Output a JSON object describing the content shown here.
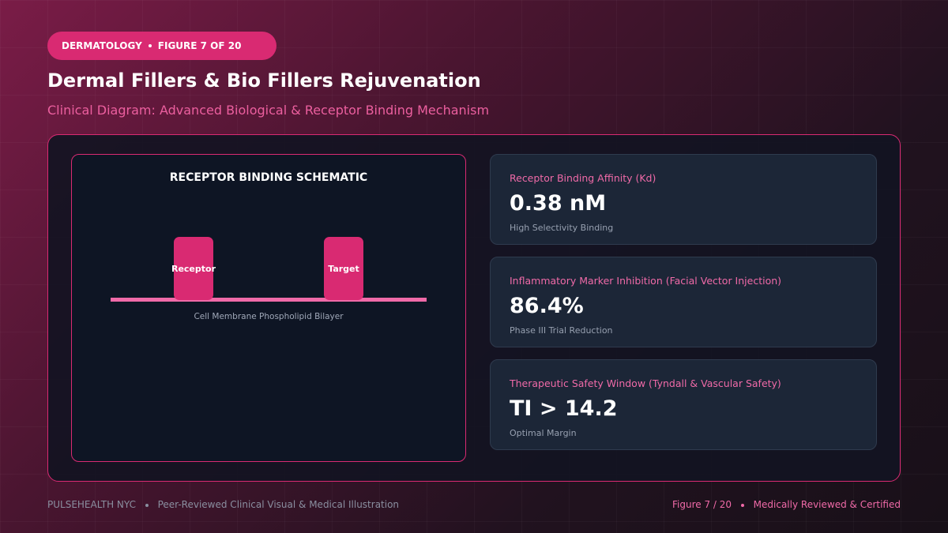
{
  "badge": {
    "category": "DERMATOLOGY",
    "figure": "FIGURE 7 OF 20"
  },
  "header": {
    "title": "Dermal Fillers & Bio Fillers Rejuvenation",
    "subtitle": "Clinical Diagram: Advanced Biological & Receptor Binding Mechanism"
  },
  "schematic": {
    "title": "RECEPTOR BINDING SCHEMATIC",
    "nodes": [
      "Receptor",
      "Target"
    ],
    "membrane": "Cell Membrane Phospholipid Bilayer"
  },
  "stats": [
    {
      "label": "Receptor Binding Affinity (Kd)",
      "value": "0.38 nM",
      "note": "High Selectivity Binding"
    },
    {
      "label": "Inflammatory Marker Inhibition (Facial Vector Injection)",
      "value": "86.4%",
      "note": "Phase III Trial Reduction"
    },
    {
      "label": "Therapeutic Safety Window (Tyndall & Vascular Safety)",
      "value": "TI > 14.2",
      "note": "Optimal Margin"
    }
  ],
  "footer": {
    "brand": "PULSEHEALTH NYC",
    "left": "Peer-Reviewed Clinical Visual & Medical Illustration",
    "figure": "Figure 7 / 20",
    "right": "Medically Reviewed & Certified"
  }
}
